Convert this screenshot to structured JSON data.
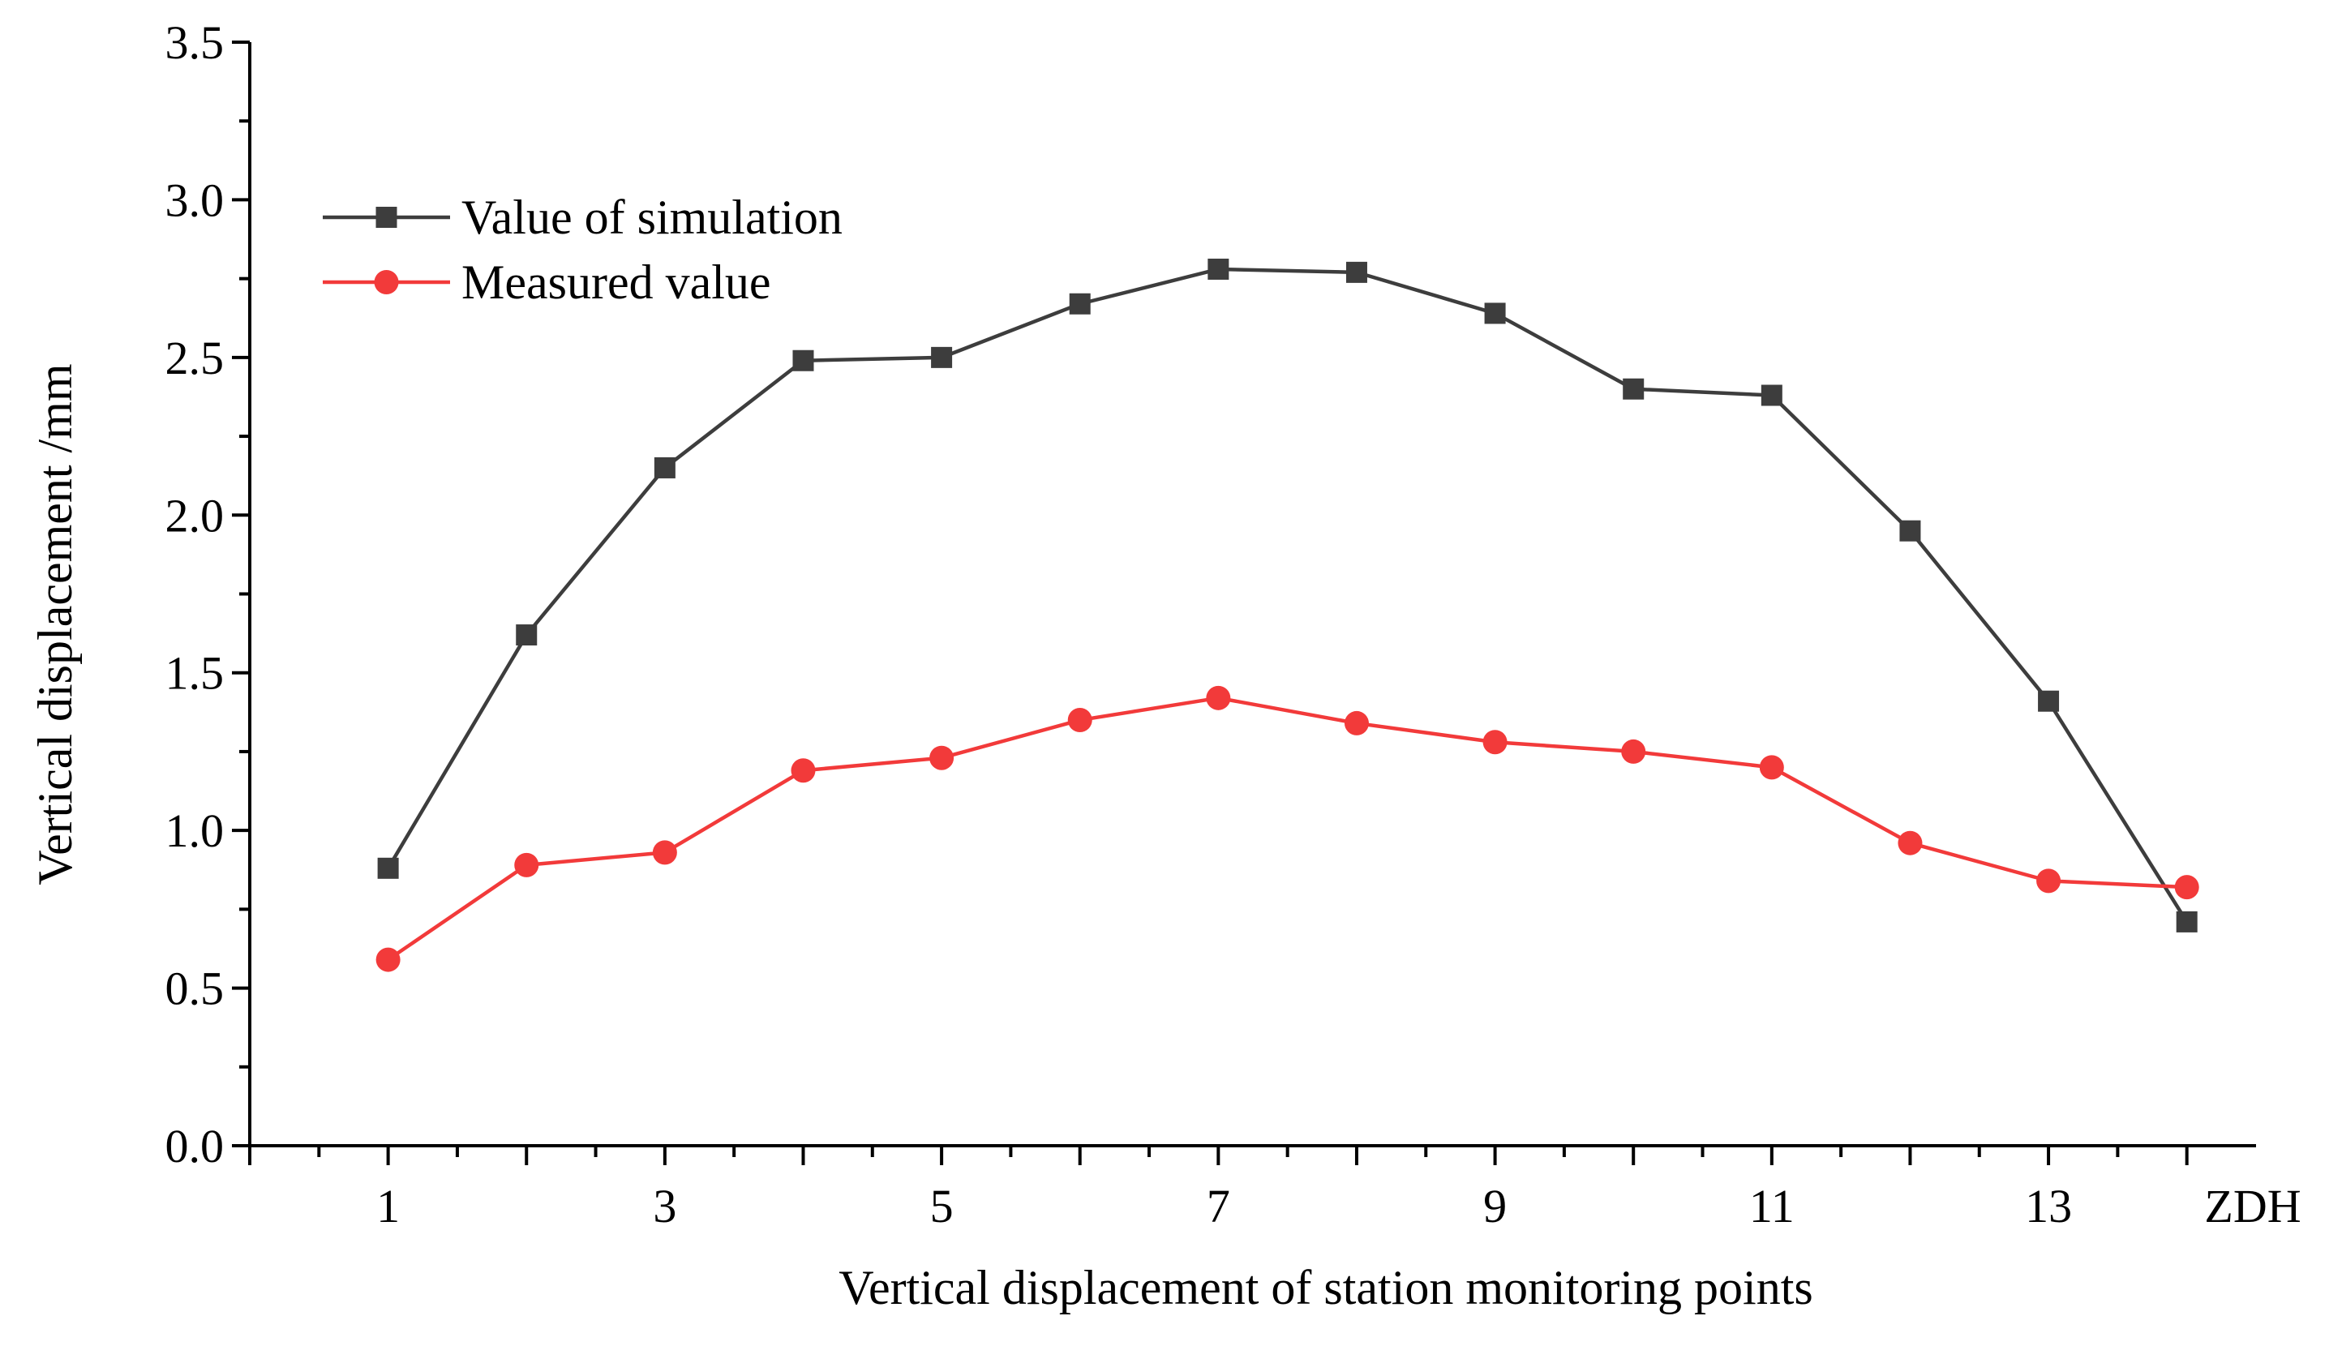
{
  "chart_data": {
    "type": "line",
    "title": "",
    "xlabel": "Vertical displacement of station monitoring points",
    "ylabel": "Vertical displacement /mm",
    "x_end_label": "ZDH",
    "x": [
      1,
      2,
      3,
      4,
      5,
      6,
      7,
      8,
      9,
      10,
      11,
      12,
      13,
      14
    ],
    "x_tick_labels": [
      "1",
      "3",
      "5",
      "7",
      "9",
      "11",
      "13"
    ],
    "x_tick_values": [
      1,
      3,
      5,
      7,
      9,
      11,
      13
    ],
    "xlim": [
      0,
      14.5
    ],
    "ylim": [
      0,
      3.5
    ],
    "y_tick_values": [
      0.0,
      0.5,
      1.0,
      1.5,
      2.0,
      2.5,
      3.0,
      3.5
    ],
    "y_tick_labels": [
      "0.0",
      "0.5",
      "1.0",
      "1.5",
      "2.0",
      "2.5",
      "3.0",
      "3.5"
    ],
    "grid": false,
    "legend_position": "top-left",
    "series": [
      {
        "name": "Value of simulation",
        "marker": "square",
        "color": "#3d3d3d",
        "values": [
          0.88,
          1.62,
          2.15,
          2.49,
          2.5,
          2.67,
          2.78,
          2.77,
          2.64,
          2.4,
          2.38,
          1.95,
          1.41,
          0.71
        ]
      },
      {
        "name": "Measured value",
        "marker": "circle",
        "color": "#f23a3a",
        "values": [
          0.59,
          0.89,
          0.93,
          1.19,
          1.23,
          1.35,
          1.42,
          1.34,
          1.28,
          1.25,
          1.2,
          0.96,
          0.84,
          0.82
        ]
      }
    ]
  }
}
